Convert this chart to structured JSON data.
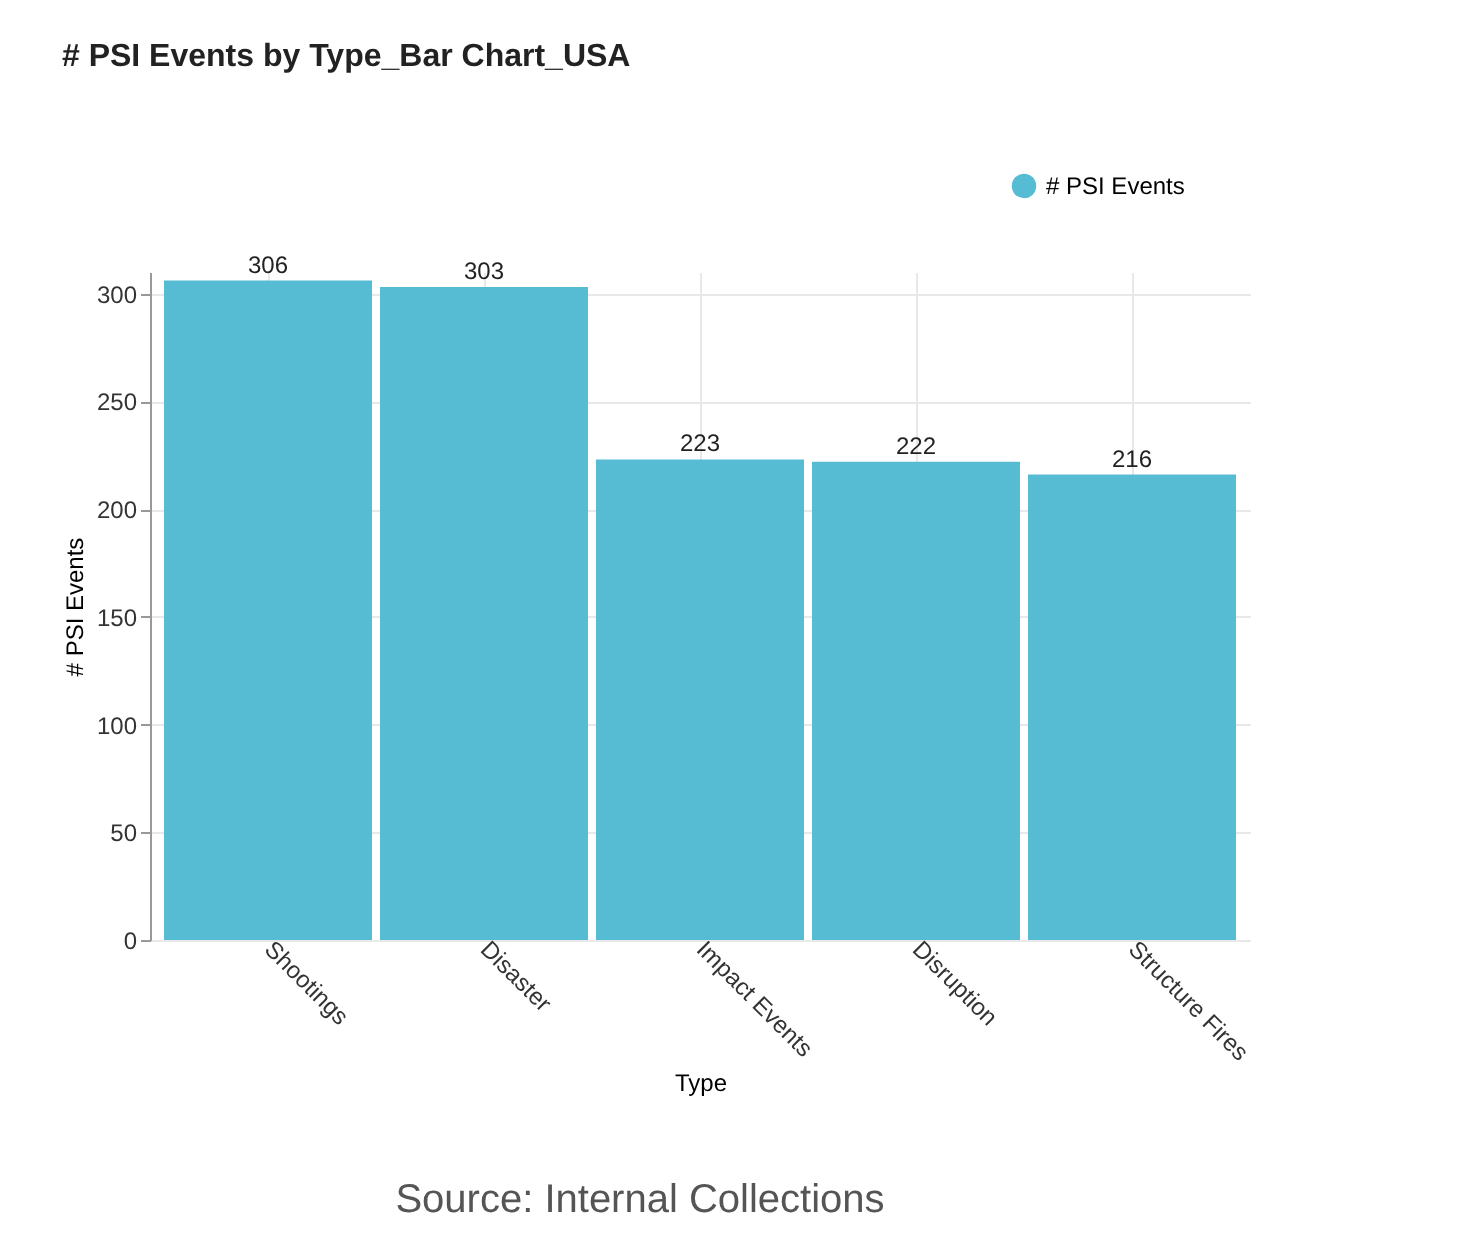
{
  "chart_data": {
    "type": "bar",
    "title": "# PSI Events by Type_Bar Chart_USA",
    "xlabel": "Type",
    "ylabel": "# PSI Events",
    "categories": [
      "Shootings",
      "Disaster",
      "Impact Events",
      "Disruption",
      "Structure Fires"
    ],
    "series": [
      {
        "name": "# PSI Events",
        "color": "#56bcd3",
        "values": [
          306,
          303,
          223,
          222,
          216
        ]
      }
    ],
    "ylim": [
      0,
      310
    ],
    "yticks": [
      0,
      50,
      100,
      150,
      200,
      250,
      300
    ],
    "grid": true,
    "legend": "top right",
    "data_labels": true,
    "annotations": [
      "Source: Internal Collections"
    ]
  }
}
